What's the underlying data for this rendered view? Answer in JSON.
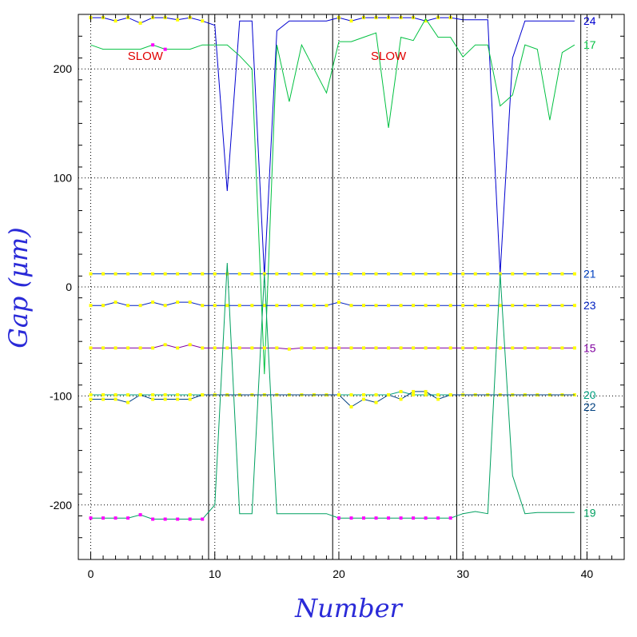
{
  "chart_data": {
    "type": "line",
    "xlabel": "Number",
    "ylabel": "Gap (μm)",
    "xlim": [
      -1,
      43
    ],
    "ylim": [
      -250,
      250
    ],
    "xticks": [
      0,
      10,
      20,
      30,
      40
    ],
    "yticks": [
      -200,
      -100,
      0,
      100,
      200
    ],
    "grid": true,
    "annotations": [
      {
        "text": "SLOW",
        "x": 4.4,
        "y": 212,
        "color": "#e00000"
      },
      {
        "text": "SLOW",
        "x": 24.0,
        "y": 212,
        "color": "#e00000"
      }
    ],
    "vertical_lines": [
      9.5,
      19.5,
      29.5,
      39.5
    ],
    "series": [
      {
        "name": "24",
        "color": "#0000d0",
        "x": [
          0,
          1,
          2,
          3,
          4,
          5,
          6,
          7,
          8,
          9,
          10,
          11,
          12,
          13,
          14,
          15,
          16,
          17,
          18,
          19,
          20,
          21,
          22,
          23,
          24,
          25,
          26,
          27,
          28,
          29,
          30,
          31,
          32,
          33,
          34,
          35,
          36,
          37,
          38,
          39
        ],
        "y": [
          247,
          247,
          244,
          247,
          242,
          247,
          247,
          245,
          247,
          244,
          240,
          88,
          244,
          244,
          10,
          235,
          244,
          244,
          244,
          244,
          247,
          244,
          247,
          247,
          247,
          247,
          247,
          244,
          247,
          247,
          245,
          245,
          245,
          12,
          210,
          244,
          244,
          244,
          244,
          244
        ],
        "markers": [
          0,
          1,
          2,
          3,
          4,
          5,
          6,
          7,
          8,
          9,
          20,
          21,
          22,
          23,
          24,
          25,
          26,
          27,
          28,
          29
        ],
        "marker_color": "#ffff00"
      },
      {
        "name": "17",
        "color": "#00c040",
        "x": [
          0,
          1,
          2,
          3,
          4,
          5,
          6,
          7,
          8,
          9,
          10,
          11,
          12,
          13,
          14,
          15,
          16,
          17,
          18,
          19,
          20,
          21,
          22,
          23,
          24,
          25,
          26,
          27,
          28,
          29,
          30,
          31,
          32,
          33,
          34,
          35,
          36,
          37,
          38,
          39
        ],
        "y": [
          222,
          218,
          218,
          218,
          218,
          222,
          218,
          218,
          218,
          222,
          222,
          222,
          212,
          200,
          -80,
          222,
          170,
          222,
          200,
          178,
          225,
          225,
          229,
          233,
          146,
          229,
          226,
          246,
          229,
          229,
          211,
          222,
          222,
          166,
          176,
          222,
          218,
          153,
          215,
          222
        ],
        "markers": [
          5,
          6
        ],
        "marker_color": "#ff00ff"
      },
      {
        "name": "21",
        "color": "#0040c0",
        "x": [
          0,
          1,
          2,
          3,
          4,
          5,
          6,
          7,
          8,
          9,
          10,
          11,
          12,
          13,
          14,
          15,
          16,
          17,
          18,
          19,
          20,
          21,
          22,
          23,
          24,
          25,
          26,
          27,
          28,
          29,
          30,
          31,
          32,
          33,
          34,
          35,
          36,
          37,
          38,
          39
        ],
        "y": [
          12,
          12,
          12,
          12,
          12,
          12,
          12,
          12,
          12,
          12,
          12,
          12,
          12,
          12,
          12,
          12,
          12,
          12,
          12,
          12,
          12,
          12,
          12,
          12,
          12,
          12,
          12,
          12,
          12,
          12,
          12,
          12,
          12,
          12,
          12,
          12,
          12,
          12,
          12,
          12
        ],
        "markers": [
          0,
          1,
          2,
          3,
          4,
          5,
          6,
          7,
          8,
          9,
          10,
          11,
          12,
          13,
          14,
          15,
          16,
          17,
          18,
          19,
          20,
          21,
          22,
          23,
          24,
          25,
          26,
          27,
          28,
          29,
          30,
          31,
          32,
          33,
          34,
          35,
          36,
          37,
          38,
          39
        ],
        "marker_color": "#ffff00"
      },
      {
        "name": "23",
        "color": "#0020c0",
        "x": [
          0,
          1,
          2,
          3,
          4,
          5,
          6,
          7,
          8,
          9,
          10,
          11,
          12,
          13,
          14,
          15,
          16,
          17,
          18,
          19,
          20,
          21,
          22,
          23,
          24,
          25,
          26,
          27,
          28,
          29,
          30,
          31,
          32,
          33,
          34,
          35,
          36,
          37,
          38,
          39
        ],
        "y": [
          -17,
          -17,
          -14,
          -17,
          -17,
          -14,
          -17,
          -14,
          -14,
          -17,
          -17,
          -17,
          -17,
          -17,
          -17,
          -17,
          -17,
          -17,
          -17,
          -17,
          -14,
          -17,
          -17,
          -17,
          -17,
          -17,
          -17,
          -17,
          -17,
          -17,
          -17,
          -17,
          -17,
          -17,
          -17,
          -17,
          -17,
          -17,
          -17,
          -17
        ],
        "markers": [
          0,
          1,
          2,
          3,
          4,
          5,
          6,
          7,
          8,
          9,
          10,
          11,
          12,
          13,
          14,
          15,
          16,
          17,
          18,
          19,
          20,
          21,
          22,
          23,
          24,
          25,
          26,
          27,
          28,
          29,
          30,
          31,
          32,
          33,
          34,
          35,
          36,
          37,
          38,
          39
        ],
        "marker_color": "#ffff00"
      },
      {
        "name": "15",
        "color": "#8000a0",
        "x": [
          0,
          1,
          2,
          3,
          4,
          5,
          6,
          7,
          8,
          9,
          10,
          11,
          12,
          13,
          14,
          15,
          16,
          17,
          18,
          19,
          20,
          21,
          22,
          23,
          24,
          25,
          26,
          27,
          28,
          29,
          30,
          31,
          32,
          33,
          34,
          35,
          36,
          37,
          38,
          39
        ],
        "y": [
          -56,
          -56,
          -56,
          -56,
          -56,
          -56,
          -53,
          -56,
          -53,
          -56,
          -56,
          -56,
          -56,
          -56,
          -56,
          -56,
          -57,
          -56,
          -56,
          -56,
          -56,
          -56,
          -56,
          -56,
          -56,
          -56,
          -56,
          -56,
          -56,
          -56,
          -56,
          -56,
          -56,
          -56,
          -56,
          -56,
          -56,
          -56,
          -56,
          -56
        ],
        "markers": [
          0,
          1,
          2,
          3,
          4,
          5,
          6,
          7,
          8,
          9,
          10,
          11,
          12,
          13,
          14,
          15,
          16,
          17,
          18,
          19,
          20,
          21,
          22,
          23,
          24,
          25,
          26,
          27,
          28,
          29,
          30,
          31,
          32,
          33,
          34,
          35,
          36,
          37,
          38,
          39
        ],
        "marker_color": "#ffff00"
      },
      {
        "name": "20",
        "color": "#00a080",
        "x": [
          0,
          1,
          2,
          3,
          4,
          5,
          6,
          7,
          8,
          9,
          10,
          11,
          12,
          13,
          14,
          15,
          16,
          17,
          18,
          19,
          20,
          21,
          22,
          23,
          24,
          25,
          26,
          27,
          28,
          29,
          30,
          31,
          32,
          33,
          34,
          35,
          36,
          37,
          38,
          39
        ],
        "y": [
          -99,
          -99,
          -99,
          -99,
          -99,
          -99,
          -99,
          -99,
          -99,
          -99,
          -99,
          -99,
          -99,
          -99,
          -99,
          -99,
          -99,
          -99,
          -99,
          -99,
          -99,
          -99,
          -99,
          -99,
          -99,
          -96,
          -99,
          -99,
          -99,
          -99,
          -99,
          -99,
          -99,
          -99,
          -99,
          -99,
          -99,
          -99,
          -99,
          -99
        ],
        "markers": [
          0,
          1,
          2,
          3,
          4,
          5,
          6,
          7,
          8,
          9,
          10,
          11,
          12,
          13,
          14,
          15,
          16,
          17,
          18,
          19,
          20,
          21,
          22,
          23,
          24,
          25,
          26,
          27,
          28,
          29,
          30,
          31,
          32,
          33,
          34,
          35,
          36,
          37,
          38,
          39
        ],
        "marker_color": "#ffff00"
      },
      {
        "name": "22",
        "color": "#004080",
        "x": [
          0,
          1,
          2,
          3,
          4,
          5,
          6,
          7,
          8,
          9,
          10,
          11,
          12,
          13,
          14,
          15,
          16,
          17,
          18,
          19,
          20,
          21,
          22,
          23,
          24,
          25,
          26,
          27,
          28,
          29,
          30,
          31,
          32,
          33,
          34,
          35,
          36,
          37,
          38,
          39
        ],
        "y": [
          -103,
          -103,
          -103,
          -106,
          -99,
          -103,
          -103,
          -103,
          -103,
          -99,
          -99,
          -99,
          -99,
          -99,
          -99,
          -99,
          -99,
          -99,
          -99,
          -99,
          -99,
          -110,
          -103,
          -106,
          -99,
          -103,
          -96,
          -96,
          -103,
          -99,
          -99,
          -99,
          -99,
          -99,
          -99,
          -99,
          -99,
          -99,
          -99,
          -99
        ],
        "markers": [
          0,
          1,
          2,
          3,
          4,
          5,
          6,
          7,
          8,
          9,
          20,
          21,
          22,
          23,
          24,
          25,
          26,
          27,
          28,
          29
        ],
        "marker_color": "#ffff00"
      },
      {
        "name": "19",
        "color": "#00a060",
        "x": [
          0,
          1,
          2,
          3,
          4,
          5,
          6,
          7,
          8,
          9,
          10,
          11,
          12,
          13,
          14,
          15,
          16,
          17,
          18,
          19,
          20,
          21,
          22,
          23,
          24,
          25,
          26,
          27,
          28,
          29,
          30,
          31,
          32,
          33,
          34,
          35,
          36,
          37,
          38,
          39
        ],
        "y": [
          -212,
          -212,
          -212,
          -212,
          -209,
          -213,
          -213,
          -213,
          -213,
          -213,
          -200,
          22,
          -208,
          -208,
          12,
          -208,
          -208,
          -208,
          -208,
          -208,
          -212,
          -212,
          -212,
          -212,
          -212,
          -212,
          -212,
          -212,
          -212,
          -212,
          -208,
          -206,
          -208,
          12,
          -173,
          -208,
          -207,
          -207,
          -207,
          -207
        ],
        "markers": [
          0,
          1,
          2,
          3,
          4,
          5,
          6,
          7,
          8,
          9,
          20,
          21,
          22,
          23,
          24,
          25,
          26,
          27,
          28,
          29
        ],
        "marker_color": "#ff00ff"
      }
    ]
  }
}
